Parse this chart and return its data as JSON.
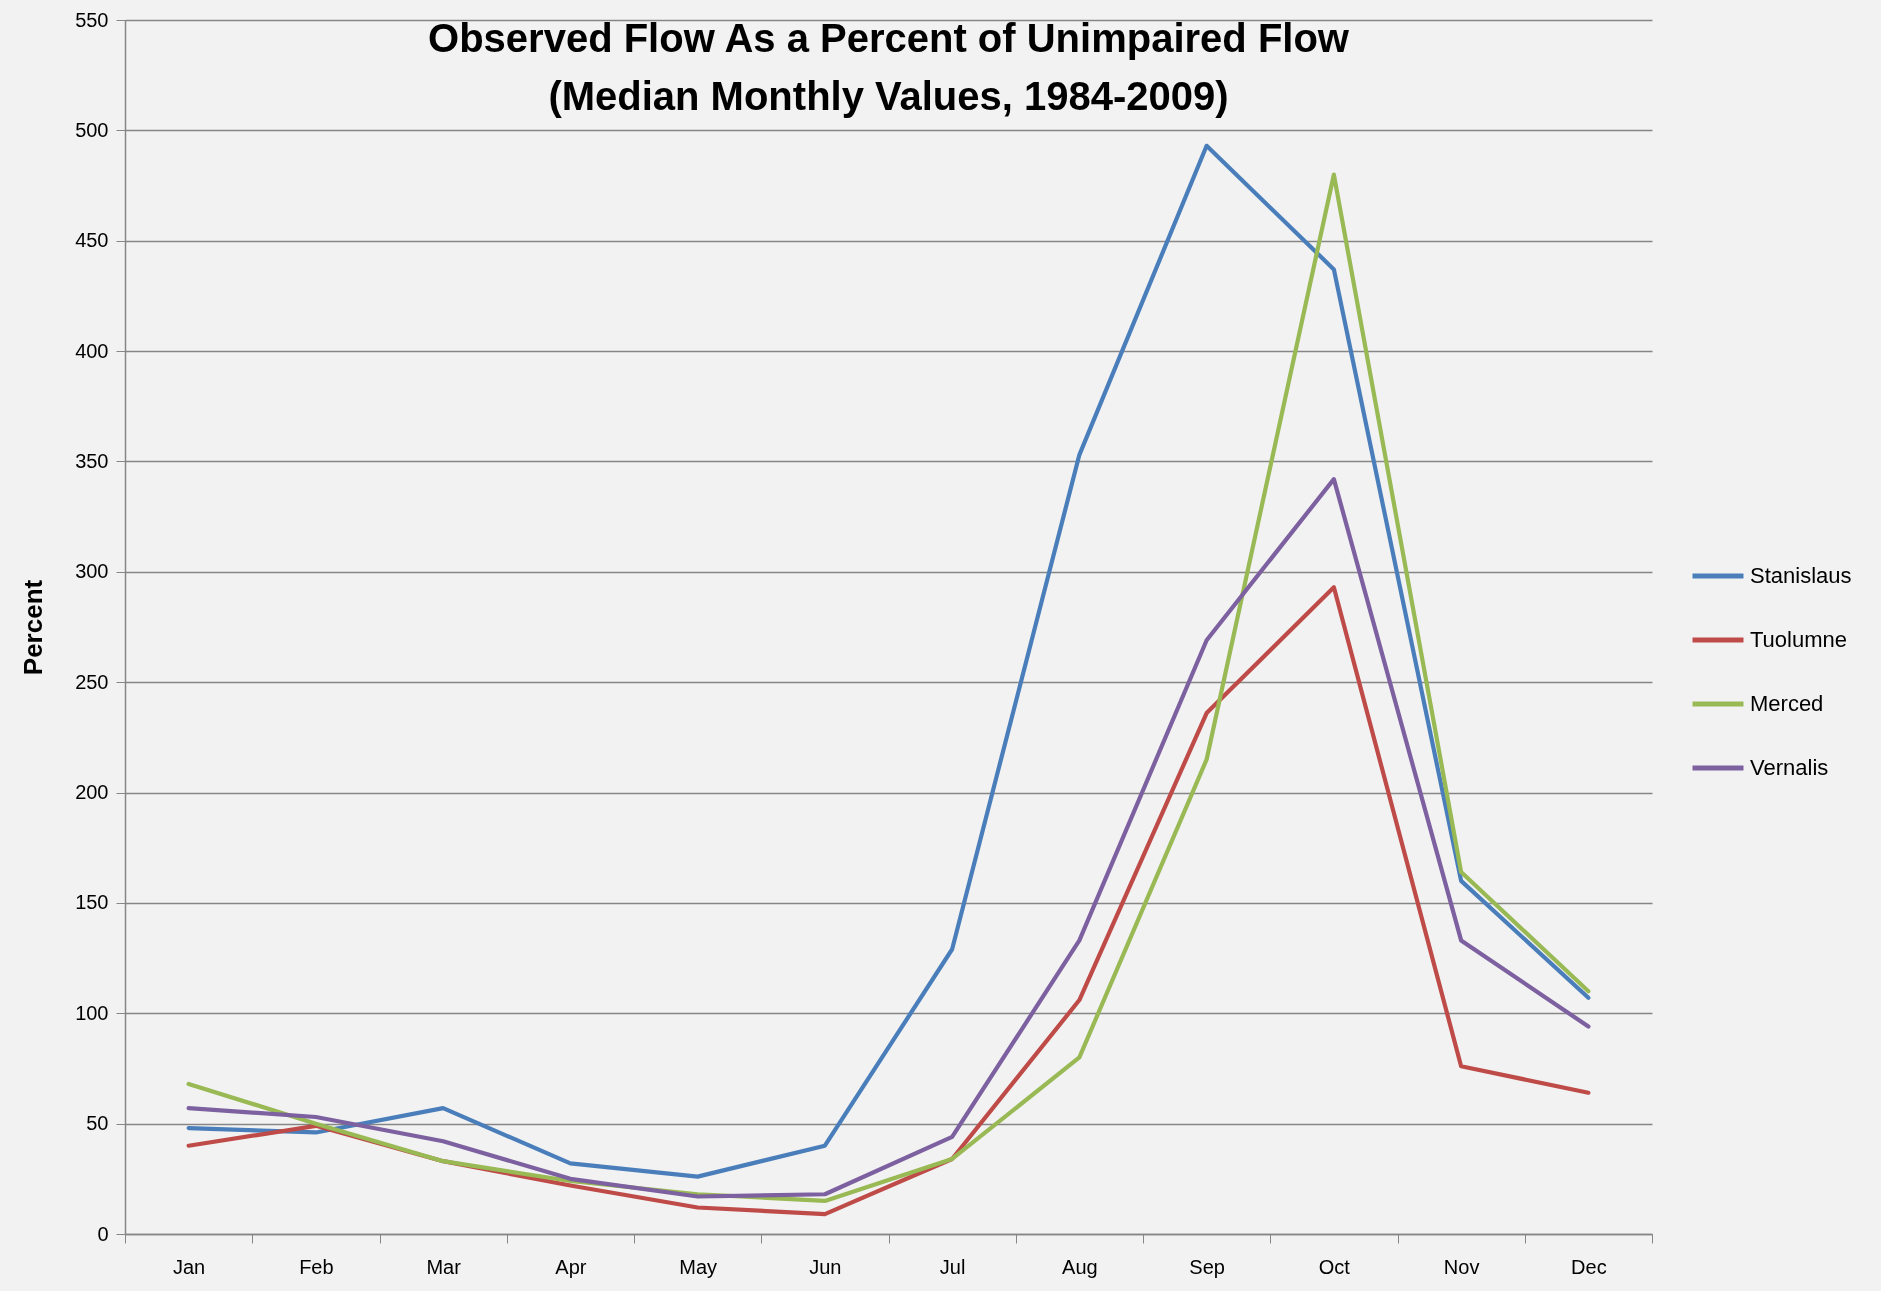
{
  "chart_data": {
    "type": "line",
    "title": "Observed Flow As a Percent of Unimpaired Flow\n(Median Monthly Values, 1984-2009)",
    "ylabel": "Percent",
    "categories": [
      "Jan",
      "Feb",
      "Mar",
      "Apr",
      "May",
      "Jun",
      "Jul",
      "Aug",
      "Sep",
      "Oct",
      "Nov",
      "Dec"
    ],
    "series": [
      {
        "name": "Stanislaus",
        "color": "#4a7ebb",
        "values": [
          48,
          46,
          57,
          32,
          26,
          40,
          129,
          353,
          493,
          437,
          160,
          107
        ]
      },
      {
        "name": "Tuolumne",
        "color": "#be4b48",
        "values": [
          40,
          49,
          33,
          22,
          12,
          9,
          34,
          106,
          236,
          293,
          76,
          64
        ]
      },
      {
        "name": "Merced",
        "color": "#98b954",
        "values": [
          68,
          50,
          33,
          24,
          18,
          15,
          34,
          80,
          215,
          480,
          164,
          110
        ]
      },
      {
        "name": "Vernalis",
        "color": "#7d60a0",
        "values": [
          57,
          53,
          42,
          25,
          17,
          18,
          44,
          133,
          269,
          342,
          133,
          94
        ]
      }
    ],
    "ylim": [
      0,
      550
    ],
    "yticks": [
      0,
      50,
      100,
      150,
      200,
      250,
      300,
      350,
      400,
      450,
      500,
      550
    ],
    "grid": "y",
    "legend": "right",
    "marker": "none",
    "line_style": "solid"
  }
}
